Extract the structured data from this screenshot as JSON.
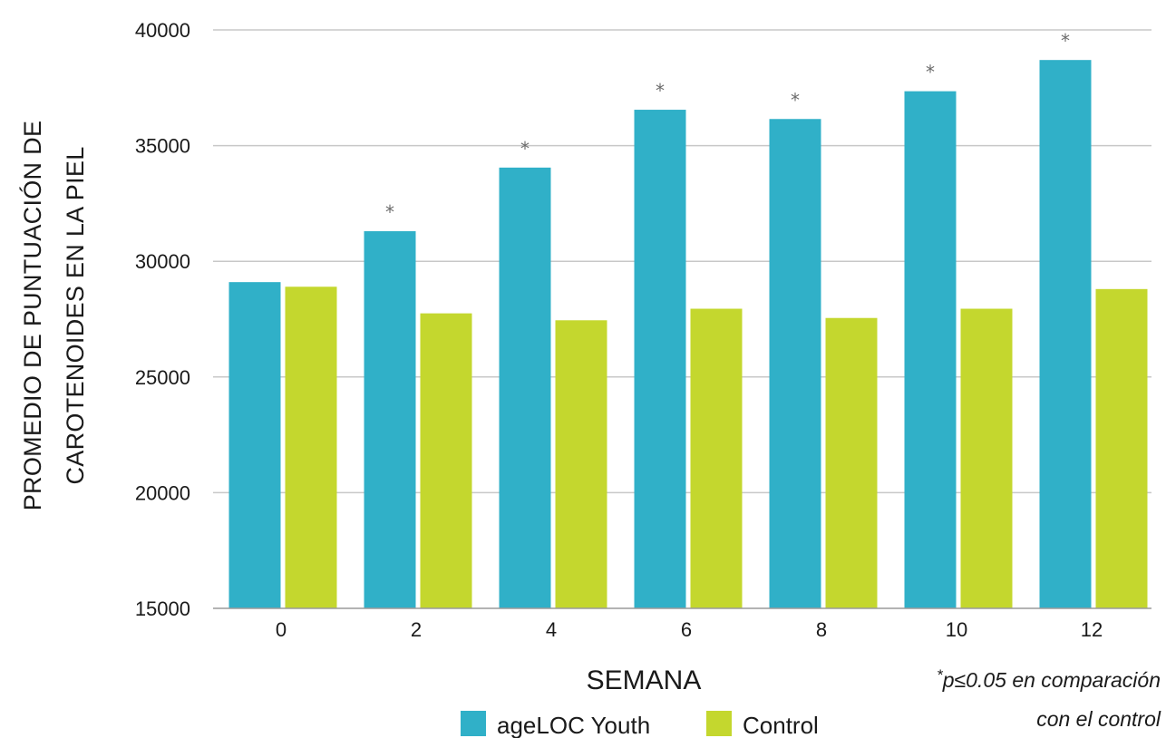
{
  "chart_data": {
    "type": "bar",
    "categories": [
      "0",
      "2",
      "4",
      "6",
      "8",
      "10",
      "12"
    ],
    "series": [
      {
        "name": "ageLOC Youth",
        "color": "#30b0c8",
        "values": [
          29100,
          31300,
          34050,
          36550,
          36150,
          37350,
          38700
        ]
      },
      {
        "name": "Control",
        "color": "#c4d72e",
        "values": [
          28900,
          27750,
          27450,
          27950,
          27550,
          27950,
          28800
        ]
      }
    ],
    "significance_marker": "*",
    "significant": [
      false,
      true,
      true,
      true,
      true,
      true,
      true
    ],
    "xlabel": "SEMANA",
    "ylabel_lines": [
      "PROMEDIO DE PUNTUACIÓN DE",
      "CAROTENOIDES EN LA PIEL"
    ],
    "ylim": [
      15000,
      40000
    ],
    "yticks": [
      "15000",
      "20000",
      "25000",
      "30000",
      "35000",
      "40000"
    ],
    "grid": true,
    "legend_position": "bottom-center",
    "note_marker": "*",
    "note_lines": [
      "p≤0.05 en comparación",
      "con el control"
    ]
  }
}
